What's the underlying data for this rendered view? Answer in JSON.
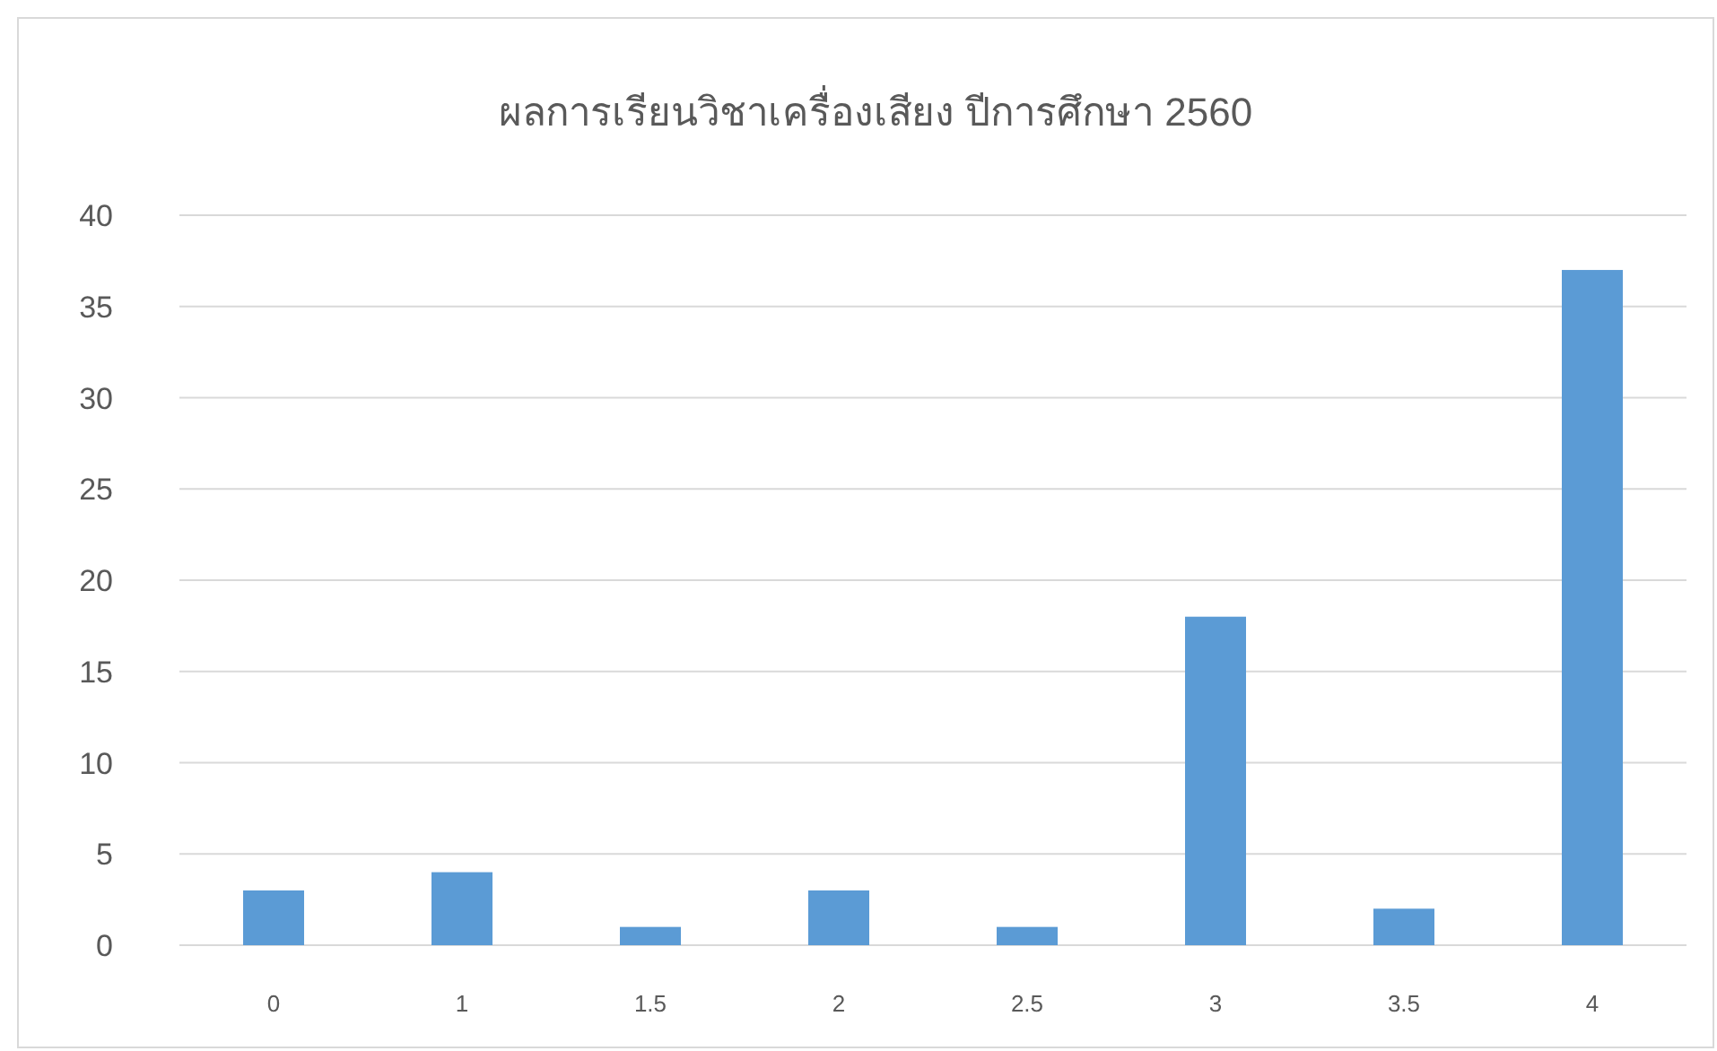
{
  "chart_data": {
    "type": "bar",
    "title": "ผลการเรียนวิชาเครื่องเสียง ปีการศึกษา 2560",
    "categories": [
      "0",
      "1",
      "1.5",
      "2",
      "2.5",
      "3",
      "3.5",
      "4"
    ],
    "values": [
      3,
      4,
      1,
      3,
      1,
      18,
      2,
      37
    ],
    "color": "#5b9bd5",
    "ylim": [
      0,
      40
    ],
    "yticks": [
      0,
      5,
      10,
      15,
      20,
      25,
      30,
      35,
      40
    ],
    "grid": "y",
    "legend": false
  }
}
